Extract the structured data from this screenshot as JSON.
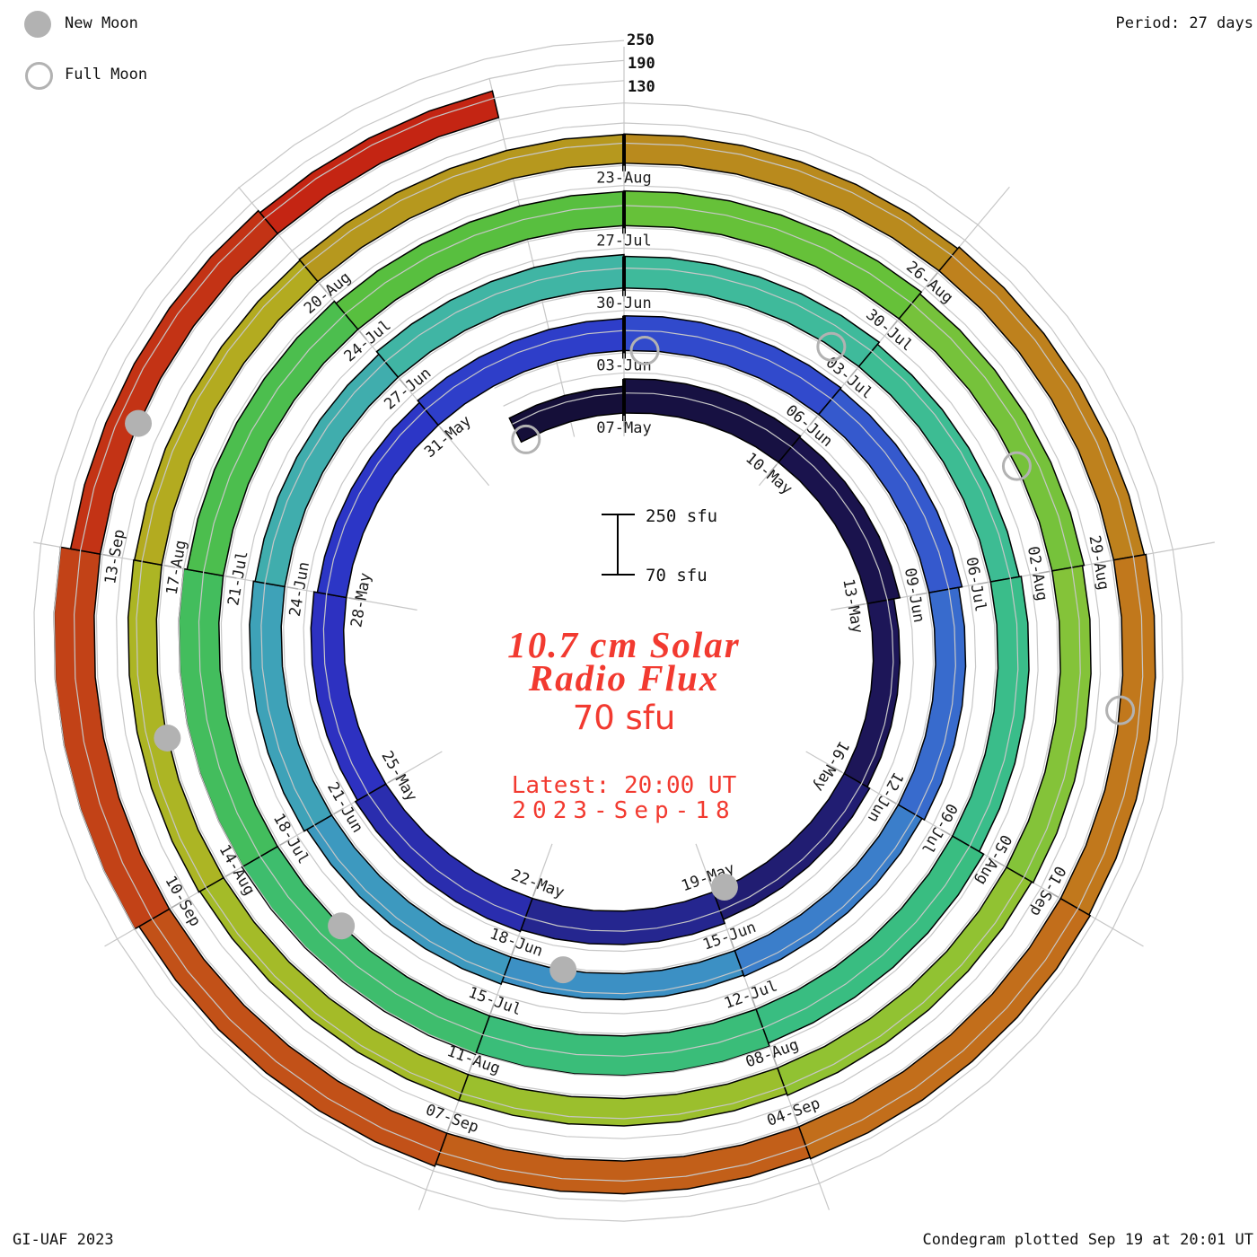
{
  "legend": {
    "new_moon": "New Moon",
    "full_moon": "Full Moon"
  },
  "period_label": "Period: 27 days",
  "top_scale_labels": [
    "250",
    "190",
    "130"
  ],
  "scale_bar": {
    "top": "250 sfu",
    "bottom": "70 sfu"
  },
  "center": {
    "title_line1": "10.7 cm Solar",
    "title_line2": "Radio Flux",
    "value": "70 sfu",
    "latest_line1": "Latest: 20:00 UT",
    "latest_line2": "2023-Sep-18"
  },
  "footer": {
    "left": "GI-UAF 2023",
    "right": "Condegram plotted Sep 19 at 20:01 UT"
  },
  "chart_data": {
    "type": "spiral_bar_condegram",
    "title": "10.7 cm Solar Radio Flux",
    "flux_unit": "sfu",
    "period_days": 27,
    "day_zero_date": "2023-05-07",
    "start_date": "2023-05-05",
    "end_date": "2023-09-18",
    "flux_base_sfu": 70,
    "flux_gridlines_sfu": [
      130,
      190,
      250
    ],
    "direction": "clockwise, one turn per 27 days, 2023-05-07 at top",
    "date_labels": [
      "07-May",
      "10-May",
      "13-May",
      "16-May",
      "19-May",
      "22-May",
      "25-May",
      "28-May",
      "31-May",
      "03-Jun",
      "06-Jun",
      "09-Jun",
      "12-Jun",
      "15-Jun",
      "18-Jun",
      "21-Jun",
      "24-Jun",
      "27-Jun",
      "30-Jun",
      "03-Jul",
      "06-Jul",
      "09-Jul",
      "12-Jul",
      "15-Jul",
      "18-Jul",
      "21-Jul",
      "24-Jul",
      "27-Jul",
      "30-Jul",
      "02-Aug",
      "05-Aug",
      "08-Aug",
      "11-Aug",
      "14-Aug",
      "17-Aug",
      "20-Aug",
      "23-Aug",
      "26-Aug",
      "29-Aug",
      "01-Sep",
      "04-Sep",
      "07-Sep",
      "10-Sep",
      "13-Sep"
    ],
    "label_step_days": 3,
    "segments": [
      {
        "d0": -2,
        "d1": 0,
        "flux": 150
      },
      {
        "d0": 0,
        "d1": 3,
        "flux": 172
      },
      {
        "d0": 3,
        "d1": 6,
        "flux": 168
      },
      {
        "d0": 6,
        "d1": 9,
        "flux": 150
      },
      {
        "d0": 9,
        "d1": 12,
        "flux": 158
      },
      {
        "d0": 12,
        "d1": 15,
        "flux": 170
      },
      {
        "d0": 15,
        "d1": 18,
        "flux": 175
      },
      {
        "d0": 18,
        "d1": 21,
        "flux": 168
      },
      {
        "d0": 21,
        "d1": 24,
        "flux": 158
      },
      {
        "d0": 24,
        "d1": 27,
        "flux": 166
      },
      {
        "d0": 27,
        "d1": 30,
        "flux": 174
      },
      {
        "d0": 30,
        "d1": 33,
        "flux": 170
      },
      {
        "d0": 33,
        "d1": 36,
        "flux": 160
      },
      {
        "d0": 36,
        "d1": 39,
        "flux": 152
      },
      {
        "d0": 39,
        "d1": 42,
        "flux": 148
      },
      {
        "d0": 42,
        "d1": 45,
        "flux": 156
      },
      {
        "d0": 45,
        "d1": 48,
        "flux": 165
      },
      {
        "d0": 48,
        "d1": 51,
        "flux": 160
      },
      {
        "d0": 51,
        "d1": 54,
        "flux": 170
      },
      {
        "d0": 54,
        "d1": 57,
        "flux": 165
      },
      {
        "d0": 57,
        "d1": 60,
        "flux": 157
      },
      {
        "d0": 60,
        "d1": 63,
        "flux": 163
      },
      {
        "d0": 63,
        "d1": 66,
        "flux": 178
      },
      {
        "d0": 66,
        "d1": 69,
        "flux": 188
      },
      {
        "d0": 69,
        "d1": 72,
        "flux": 193
      },
      {
        "d0": 72,
        "d1": 75,
        "flux": 190
      },
      {
        "d0": 75,
        "d1": 78,
        "flux": 180
      },
      {
        "d0": 78,
        "d1": 81,
        "flux": 172
      },
      {
        "d0": 81,
        "d1": 84,
        "flux": 174
      },
      {
        "d0": 84,
        "d1": 87,
        "flux": 167
      },
      {
        "d0": 87,
        "d1": 90,
        "flux": 162
      },
      {
        "d0": 90,
        "d1": 93,
        "flux": 157
      },
      {
        "d0": 93,
        "d1": 96,
        "flux": 152
      },
      {
        "d0": 96,
        "d1": 99,
        "flux": 152
      },
      {
        "d0": 99,
        "d1": 102,
        "flux": 155
      },
      {
        "d0": 102,
        "d1": 105,
        "flux": 153
      },
      {
        "d0": 105,
        "d1": 108,
        "flux": 156
      },
      {
        "d0": 108,
        "d1": 111,
        "flux": 157
      },
      {
        "d0": 111,
        "d1": 114,
        "flux": 163
      },
      {
        "d0": 114,
        "d1": 117,
        "flux": 168
      },
      {
        "d0": 117,
        "d1": 120,
        "flux": 172
      },
      {
        "d0": 120,
        "d1": 123,
        "flux": 168
      },
      {
        "d0": 123,
        "d1": 126,
        "flux": 175
      },
      {
        "d0": 126,
        "d1": 129,
        "flux": 190
      },
      {
        "d0": 129,
        "d1": 132,
        "flux": 160
      },
      {
        "d0": 132,
        "d1": 134,
        "flux": 152
      }
    ],
    "moons": {
      "full": [
        {
          "date": "2023-05-05",
          "day": -1.9
        },
        {
          "date": "2023-06-04",
          "day": 27.3
        },
        {
          "date": "2023-07-03",
          "day": 56.6
        },
        {
          "date": "2023-08-01",
          "day": 85.9
        },
        {
          "date": "2023-08-31",
          "day": 115.3
        }
      ],
      "new": [
        {
          "date": "2023-05-19",
          "day": 11.8
        },
        {
          "date": "2023-06-18",
          "day": 41.3
        },
        {
          "date": "2023-07-17",
          "day": 70.9
        },
        {
          "date": "2023-08-16",
          "day": 100.4
        },
        {
          "date": "2023-09-15",
          "day": 130.1
        }
      ]
    },
    "colormap": [
      [
        -2,
        "#140e35"
      ],
      [
        8,
        "#1d165a"
      ],
      [
        15,
        "#272a9e"
      ],
      [
        18,
        "#2d2fbe"
      ],
      [
        24,
        "#2c38c8"
      ],
      [
        30,
        "#3350cd"
      ],
      [
        36,
        "#3a74cd"
      ],
      [
        40,
        "#3c8ec5"
      ],
      [
        45,
        "#3d9dbd"
      ],
      [
        51,
        "#41b2a8"
      ],
      [
        57,
        "#3ebc97"
      ],
      [
        63,
        "#38bd85"
      ],
      [
        69,
        "#3bbd75"
      ],
      [
        75,
        "#46bd55"
      ],
      [
        81,
        "#5ec038"
      ],
      [
        87,
        "#7ec33c"
      ],
      [
        93,
        "#97c12f"
      ],
      [
        99,
        "#a8b926"
      ],
      [
        103,
        "#b3ae20"
      ],
      [
        108,
        "#b78f1d"
      ],
      [
        113,
        "#bf7f1d"
      ],
      [
        118,
        "#c2701b"
      ],
      [
        123,
        "#c25818"
      ],
      [
        127,
        "#c24417"
      ],
      [
        131,
        "#c33015"
      ],
      [
        134,
        "#c51f12"
      ]
    ],
    "grid_color": "#c7c7c7",
    "moon_color": "#b2b2b2",
    "accent_red": "#f23a30"
  }
}
